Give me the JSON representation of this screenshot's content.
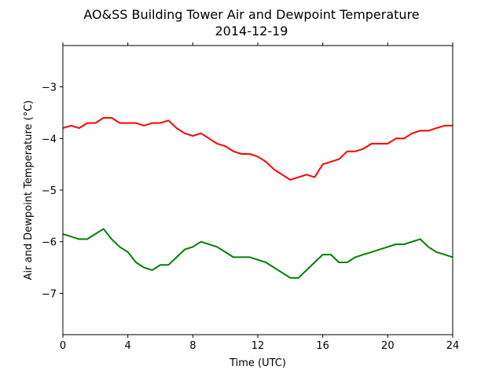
{
  "chart_data": {
    "type": "line",
    "title": "AO&SS Building Tower Air and Dewpoint Temperature",
    "subtitle": "2014-12-19",
    "xlabel": "Time (UTC)",
    "ylabel": "Air and Dewpoint Temperature (°C)",
    "xlim": [
      0,
      24
    ],
    "ylim": [
      -7.8,
      -2.2
    ],
    "xticks": [
      0,
      4,
      8,
      12,
      16,
      20,
      24
    ],
    "xtick_labels": [
      "0",
      "4",
      "8",
      "12",
      "16",
      "20",
      "24"
    ],
    "yticks": [
      -7,
      -6,
      -5,
      -4,
      -3
    ],
    "ytick_labels": [
      "−7",
      "−6",
      "−5",
      "−4",
      "−3"
    ],
    "grid": false,
    "series": [
      {
        "color": "#ff0000",
        "x": [
          0,
          0.5,
          1,
          1.5,
          2,
          2.5,
          3,
          3.5,
          4,
          4.5,
          5,
          5.5,
          6,
          6.5,
          7,
          7.5,
          8,
          8.5,
          9,
          9.5,
          10,
          10.5,
          11,
          11.5,
          12,
          12.5,
          13,
          13.5,
          14,
          14.5,
          15,
          15.5,
          16,
          16.5,
          17,
          17.5,
          18,
          18.5,
          19,
          19.5,
          20,
          20.5,
          21,
          21.5,
          22,
          22.5,
          23,
          23.5,
          24
        ],
        "y": [
          -3.8,
          -3.75,
          -3.8,
          -3.7,
          -3.7,
          -3.6,
          -3.6,
          -3.7,
          -3.7,
          -3.7,
          -3.75,
          -3.7,
          -3.7,
          -3.65,
          -3.8,
          -3.9,
          -3.95,
          -3.9,
          -4.0,
          -4.1,
          -4.15,
          -4.25,
          -4.3,
          -4.3,
          -4.35,
          -4.45,
          -4.6,
          -4.7,
          -4.8,
          -4.75,
          -4.7,
          -4.75,
          -4.5,
          -4.45,
          -4.4,
          -4.25,
          -4.25,
          -4.2,
          -4.1,
          -4.1,
          -4.1,
          -4.0,
          -4.0,
          -3.9,
          -3.85,
          -3.85,
          -3.8,
          -3.75,
          -3.75
        ]
      },
      {
        "color": "#008000",
        "x": [
          0,
          0.5,
          1,
          1.5,
          2,
          2.5,
          3,
          3.5,
          4,
          4.5,
          5,
          5.5,
          6,
          6.5,
          7,
          7.5,
          8,
          8.5,
          9,
          9.5,
          10,
          10.5,
          11,
          11.5,
          12,
          12.5,
          13,
          13.5,
          14,
          14.5,
          15,
          15.5,
          16,
          16.5,
          17,
          17.5,
          18,
          18.5,
          19,
          19.5,
          20,
          20.5,
          21,
          21.5,
          22,
          22.5,
          23,
          23.5,
          24
        ],
        "y": [
          -5.85,
          -5.9,
          -5.95,
          -5.95,
          -5.85,
          -5.75,
          -5.95,
          -6.1,
          -6.2,
          -6.4,
          -6.5,
          -6.55,
          -6.45,
          -6.45,
          -6.3,
          -6.15,
          -6.1,
          -6.0,
          -6.05,
          -6.1,
          -6.2,
          -6.3,
          -6.3,
          -6.3,
          -6.35,
          -6.4,
          -6.5,
          -6.6,
          -6.7,
          -6.7,
          -6.55,
          -6.4,
          -6.25,
          -6.25,
          -6.4,
          -6.4,
          -6.3,
          -6.25,
          -6.2,
          -6.15,
          -6.1,
          -6.05,
          -6.05,
          -6.0,
          -5.95,
          -6.1,
          -6.2,
          -6.25,
          -6.3
        ]
      }
    ]
  }
}
